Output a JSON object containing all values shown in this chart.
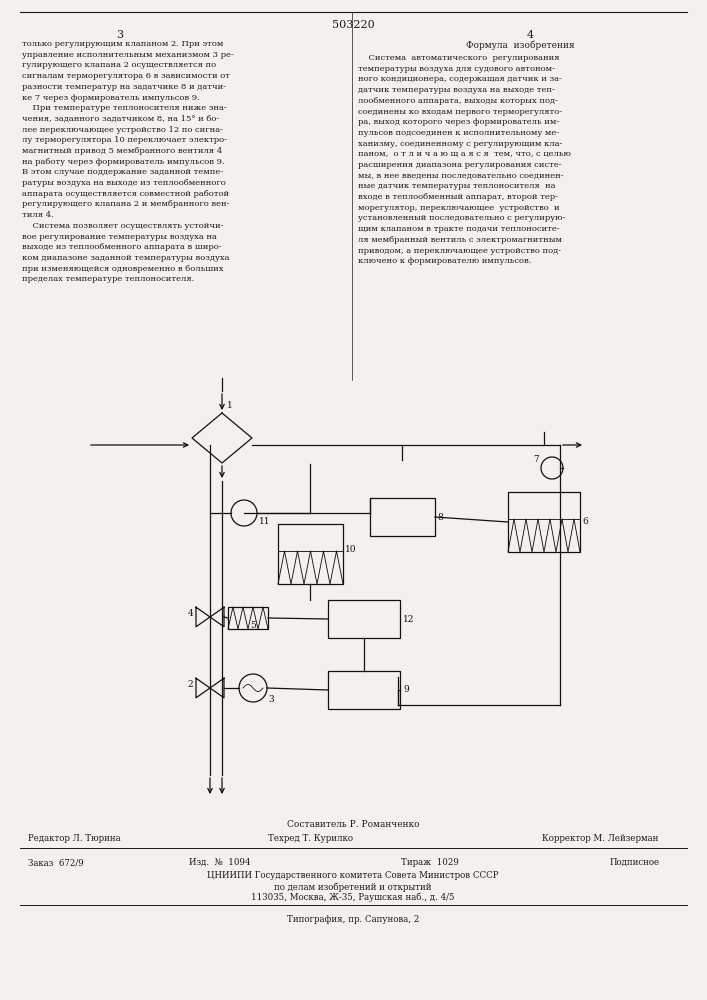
{
  "page_number": "503220",
  "col_left": "3",
  "col_right": "4",
  "text_left": "только регулирующим клапаном 2. При этом\nуправление исполнительным механизмом 3 ре-\nгулирующего клапана 2 осуществляется по\nсигналам терморегулятора 6 в зависимости от\nразности температур на задатчике 8 и датчи-\nке 7 через формирователь импульсов 9.\n    При температуре теплоносителя ниже зна-\nчения, заданного задатчиком 8, на 15° и бо-\nлее переключающее устройство 12 по сигна-\nлу терморегулятора 10 переключает электро-\nмагнитный привод 5 мембранного вентиля 4\nна работу через формирователь импульсов 9.\nВ этом случае поддержание заданной темпе-\nратуры воздуха на выходе из теплообменного\nаппарата осуществляется совместной работой\nрегулирующего клапана 2 и мембранного вен-\nтиля 4.\n    Система позволяет осуществлять устойчи-\nвое регулирование температуры воздуха на\nвыходе из теплообменного аппарата в широ-\nком диапазоне заданной температуры воздуха\nпри изменяющейся одновременно в больших\nпределах температуре теплоносителя.",
  "text_right_header": "Формула  изобретения",
  "text_right_body": "    Система  автоматического  регулирования\nтемпературы воздуха для судового автоном-\nного кондиционера, содержащая датчик и за-\nдатчик температуры воздуха на выходе теп-\nлообменного аппарата, выходы которых под-\nсоединены ко входам первого терморегулято-\nра, выход которого через формирователь им-\nпульсов подсоединен к исполнительному ме-\nханизму, соединенному с регулирующим кла-\nпаном,  о т л и ч а ю щ а я с я  тем, что, с целью\nрасширения диапазона регулирования систе-\nмы, в нее введены последовательно соединен-\nные датчик температуры теплоносителя  на\nвходе в теплообменный аппарат, второй тер-\nморегулятор, переключающее  устройство  и\nустановленный последовательно с регулирую-\nщим клапаном в тракте подачи теплоносите-\nля мембранный вентиль с электромагнитным\nприводом, а переключающее устройство под-\nключено к формирователю импульсов.",
  "footer_compiler": "Составитель Р. Романченко",
  "footer_editor": "Редактор Л. Тюрина",
  "footer_tech": "Техред Т. Курилко",
  "footer_corrector": "Корректор М. Лейзерман",
  "footer_order": "Заказ  672/9",
  "footer_izd": "Изд.  №  1094",
  "footer_tirazh": "Тираж  1029",
  "footer_podp": "Подписное",
  "footer_org": "ЦНИИПИ Государственного комитета Совета Министров СССР",
  "footer_org2": "по делам изобретений и открытий",
  "footer_addr": "113035, Москва, Ж-35, Раушская наб., д. 4/5",
  "footer_typo": "Типография, пр. Сапунова, 2",
  "bg_color": "#f4f1ed",
  "text_color": "#1a1a1a",
  "diagram_color": "#111111"
}
